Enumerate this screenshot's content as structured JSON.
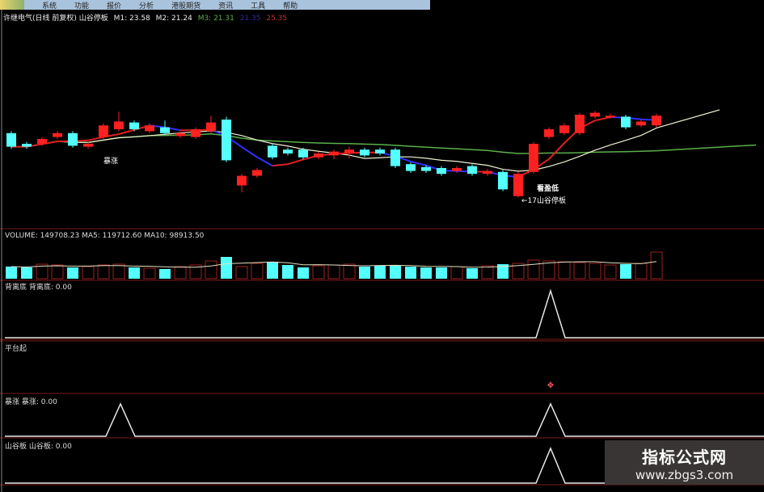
{
  "menu": [
    "系统",
    "功能",
    "报价",
    "分析",
    "港股期货",
    "资讯",
    "工具",
    "帮助"
  ],
  "header": {
    "title": "许继电气(日线 前复权) 山谷停板",
    "m1": "M1: 23.58",
    "m2": "M2: 21.24",
    "m3": "M3: 21.31",
    "extra_blue": "21.35",
    "extra_red": "25.35"
  },
  "annotations": {
    "surge": "暴涨",
    "bottom": "看盈低",
    "valley": "←17山谷停板"
  },
  "volume_panel": {
    "label": "VOLUME: 149708.23  MA5: 119712.60  MA10: 98913.50"
  },
  "panels": [
    {
      "label": "背离底  背离底: 0.00",
      "signals": [
        34
      ]
    },
    {
      "label": "平台起",
      "markers": [
        34
      ]
    },
    {
      "label": "暴涨  暴涨: 0.00",
      "signals": [
        6,
        34
      ]
    },
    {
      "label": "山谷板  山谷板: 0.00",
      "signals": [
        34
      ]
    }
  ],
  "watermark": {
    "title": "指标公式网",
    "url": "www.zbgs3.com"
  },
  "colors": {
    "up": "#ff2020",
    "down": "#54ffff",
    "ma5": "#3030ff",
    "ma10": "#f0f0d0",
    "ma30": "#5ab04a",
    "grid": "#7a1a1a"
  },
  "chart_data": {
    "type": "candlestick",
    "candles": [
      [
        23.6,
        22.2,
        23.8,
        22.0
      ],
      [
        22.5,
        22.2,
        22.7,
        22.0
      ],
      [
        22.5,
        23.0,
        23.2,
        22.3
      ],
      [
        23.2,
        23.6,
        23.8,
        23.0
      ],
      [
        23.6,
        22.3,
        23.8,
        22.1
      ],
      [
        22.2,
        22.5,
        22.7,
        22.0
      ],
      [
        23.2,
        24.4,
        24.6,
        23.0
      ],
      [
        24.0,
        24.8,
        25.8,
        23.8
      ],
      [
        24.7,
        24.0,
        24.9,
        23.8
      ],
      [
        23.8,
        24.4,
        24.6,
        23.6
      ],
      [
        24.2,
        23.6,
        24.9,
        23.4
      ],
      [
        23.3,
        23.6,
        23.8,
        23.1
      ],
      [
        23.2,
        24.0,
        24.2,
        23.0
      ],
      [
        23.8,
        24.7,
        25.4,
        23.6
      ],
      [
        25.0,
        20.8,
        25.3,
        20.6
      ],
      [
        18.2,
        19.2,
        19.4,
        17.5
      ],
      [
        19.2,
        19.8,
        20.0,
        19.0
      ],
      [
        22.3,
        21.1,
        22.5,
        20.9
      ],
      [
        21.9,
        21.5,
        22.1,
        21.3
      ],
      [
        21.9,
        21.1,
        22.1,
        20.9
      ],
      [
        21.1,
        21.5,
        21.7,
        20.9
      ],
      [
        21.3,
        21.7,
        21.9,
        20.9
      ],
      [
        21.5,
        21.9,
        22.2,
        21.0
      ],
      [
        21.9,
        21.3,
        22.1,
        21.1
      ],
      [
        21.9,
        21.5,
        22.1,
        21.3
      ],
      [
        21.9,
        20.2,
        22.1,
        20.0
      ],
      [
        20.4,
        19.7,
        20.6,
        19.5
      ],
      [
        20.1,
        19.7,
        20.3,
        19.5
      ],
      [
        20.0,
        19.4,
        20.2,
        19.2
      ],
      [
        19.7,
        20.0,
        20.2,
        19.5
      ],
      [
        20.2,
        19.4,
        20.4,
        19.2
      ],
      [
        19.4,
        19.7,
        19.9,
        19.2
      ],
      [
        19.6,
        17.8,
        19.8,
        17.6
      ],
      [
        17.1,
        19.4,
        19.6,
        17.0
      ],
      [
        19.6,
        22.5,
        22.7,
        19.4
      ],
      [
        23.2,
        24.0,
        24.2,
        23.0
      ],
      [
        23.6,
        24.4,
        24.6,
        23.4
      ],
      [
        23.6,
        25.5,
        25.7,
        23.4
      ],
      [
        25.3,
        25.7,
        25.9,
        25.1
      ],
      [
        25.3,
        25.4,
        25.6,
        25.1
      ],
      [
        25.3,
        24.2,
        25.5,
        24.0
      ],
      [
        24.4,
        24.8,
        25.0,
        24.2
      ],
      [
        24.4,
        25.4,
        25.6,
        24.2
      ]
    ],
    "volume": [
      60,
      55,
      75,
      70,
      55,
      60,
      70,
      75,
      55,
      50,
      45,
      60,
      70,
      95,
      120,
      60,
      80,
      90,
      70,
      55,
      65,
      70,
      75,
      60,
      65,
      70,
      60,
      55,
      55,
      60,
      50,
      65,
      75,
      80,
      100,
      95,
      90,
      85,
      80,
      70,
      75,
      80,
      150
    ],
    "price_range": [
      16.5,
      26.5
    ]
  }
}
